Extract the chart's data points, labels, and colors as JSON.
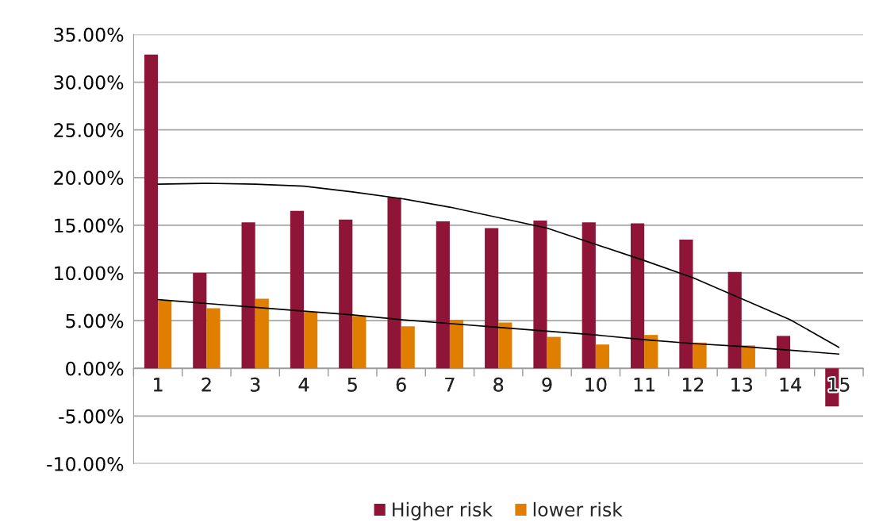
{
  "chart_data": {
    "type": "bar",
    "categories": [
      "1",
      "2",
      "3",
      "4",
      "5",
      "6",
      "7",
      "8",
      "9",
      "10",
      "11",
      "12",
      "13",
      "14",
      "15"
    ],
    "series": [
      {
        "name": "Higher risk",
        "color": "#8e1538",
        "values": [
          32.9,
          10.0,
          15.3,
          16.5,
          15.6,
          17.9,
          15.4,
          14.7,
          15.5,
          15.3,
          15.2,
          13.5,
          10.1,
          3.4,
          -4.0
        ]
      },
      {
        "name": "lower risk",
        "color": "#e07e00",
        "values": [
          7.1,
          6.3,
          7.3,
          5.9,
          5.5,
          4.4,
          5.1,
          4.8,
          3.3,
          2.5,
          3.5,
          2.7,
          2.4,
          null,
          null
        ]
      },
      {
        "type": "line",
        "color": "#000000",
        "values": [
          19.3,
          19.4,
          19.3,
          19.1,
          18.5,
          17.8,
          16.9,
          15.8,
          14.7,
          13.0,
          11.3,
          9.5,
          7.3,
          5.1,
          2.2
        ]
      },
      {
        "type": "line",
        "color": "#000000",
        "values": [
          7.2,
          6.8,
          6.4,
          6.0,
          5.6,
          5.1,
          4.7,
          4.3,
          3.9,
          3.5,
          3.0,
          2.6,
          2.3,
          1.9,
          1.5
        ]
      }
    ],
    "ylim": [
      -10,
      35
    ],
    "yticks": [
      {
        "value": -10,
        "label": "-10.00%"
      },
      {
        "value": -5,
        "label": "-5.00%"
      },
      {
        "value": 0,
        "label": "0.00%"
      },
      {
        "value": 5,
        "label": "5.00%"
      },
      {
        "value": 10,
        "label": "10.00%"
      },
      {
        "value": 15,
        "label": "15.00%"
      },
      {
        "value": 20,
        "label": "20.00%"
      },
      {
        "value": 25,
        "label": "25.00%"
      },
      {
        "value": 30,
        "label": "30.00%"
      },
      {
        "value": 35,
        "label": "35.00%"
      }
    ],
    "grid": "y",
    "legend": "bottom",
    "marker": "none",
    "line_style": "solid"
  }
}
